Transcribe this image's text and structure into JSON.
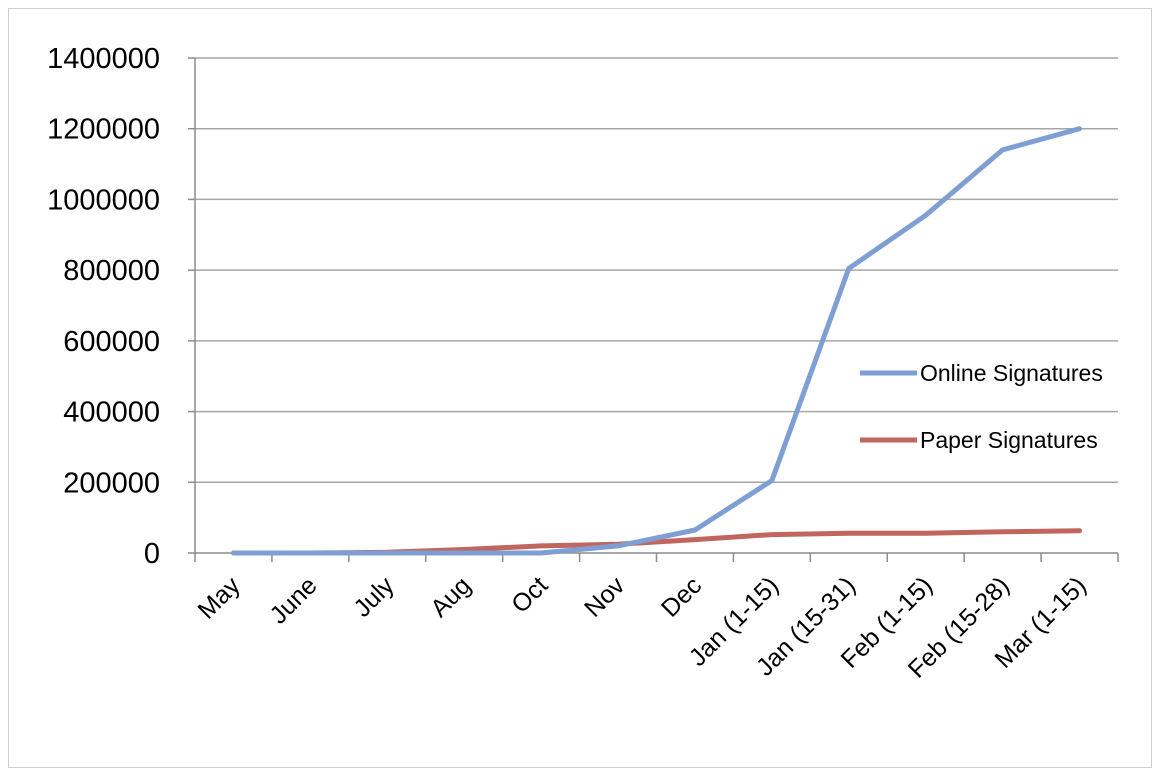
{
  "chart_data": {
    "type": "line",
    "title": "",
    "xlabel": "",
    "ylabel": "",
    "categories": [
      "May",
      "June",
      "July",
      "Aug",
      "Oct",
      "Nov",
      "Dec",
      "Jan (1-15)",
      "Jan (15-31)",
      "Feb (1-15)",
      "Feb (15-28)",
      "Mar (1-15)"
    ],
    "ylim": [
      0,
      1400000
    ],
    "yticks": [
      "0",
      "200000",
      "400000",
      "600000",
      "800000",
      "1000000",
      "1200000",
      "1400000"
    ],
    "grid": "horizontal",
    "legend_position": "right",
    "series": [
      {
        "name": "Online Signatures",
        "color": "#7f9fd4",
        "values": [
          0,
          0,
          0,
          0,
          0,
          20000,
          65000,
          205000,
          805000,
          955000,
          1140000,
          1200000
        ]
      },
      {
        "name": "Paper Signatures",
        "color": "#c0665e",
        "values": [
          0,
          0,
          2000,
          10000,
          20000,
          25000,
          38000,
          52000,
          56000,
          56000,
          60000,
          63000
        ]
      }
    ]
  }
}
